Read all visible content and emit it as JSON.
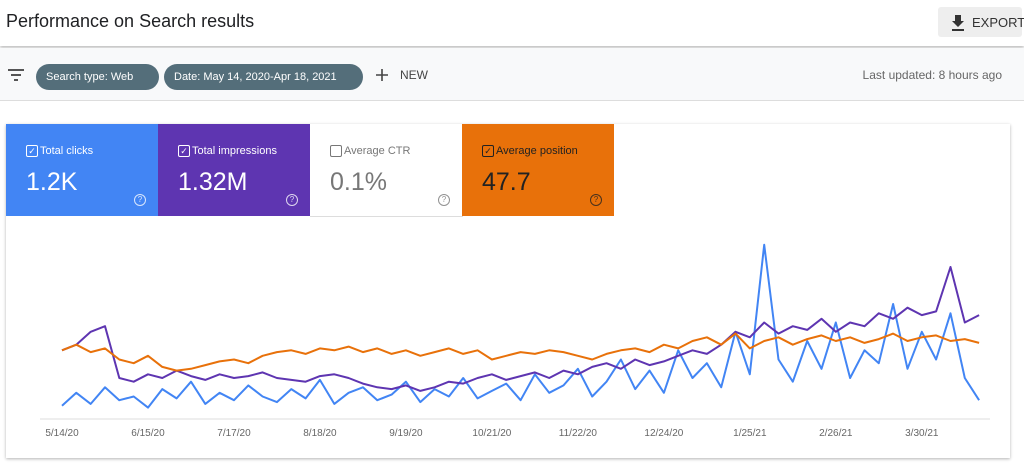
{
  "header": {
    "title": "Performance on Search results",
    "export": "EXPORT"
  },
  "filters": {
    "chips": [
      "Search type: Web",
      "Date: May 14, 2020-Apr 18, 2021"
    ],
    "new": "NEW",
    "updated": "Last updated: 8 hours ago"
  },
  "ctr": {
    "name": "Average CTR",
    "total": "0.1%",
    "checked": false
  },
  "chart_data": {
    "type": "line",
    "ylim": [
      0,
      100
    ],
    "categories": [
      "5/14/20",
      null,
      null,
      null,
      null,
      null,
      "6/15/20",
      null,
      null,
      null,
      null,
      null,
      "7/17/20",
      null,
      null,
      null,
      null,
      null,
      "8/18/20",
      null,
      null,
      null,
      null,
      null,
      "9/19/20",
      null,
      null,
      null,
      null,
      null,
      "10/21/20",
      null,
      null,
      null,
      null,
      null,
      "11/22/20",
      null,
      null,
      null,
      null,
      null,
      "12/24/20",
      null,
      null,
      null,
      null,
      null,
      "1/25/21",
      null,
      null,
      null,
      null,
      null,
      "2/26/21",
      null,
      null,
      null,
      null,
      null,
      "3/30/21",
      null,
      null,
      null,
      null
    ],
    "series": [
      {
        "name": "Total clicks",
        "total": "1.2K",
        "color": "#4285f4",
        "checked": true,
        "values": [
          5,
          12,
          6,
          15,
          8,
          10,
          4,
          14,
          9,
          18,
          6,
          12,
          8,
          16,
          10,
          7,
          14,
          9,
          19,
          6,
          12,
          15,
          8,
          11,
          18,
          7,
          14,
          10,
          20,
          9,
          13,
          17,
          8,
          22,
          12,
          16,
          25,
          10,
          18,
          30,
          14,
          24,
          12,
          35,
          20,
          28,
          15,
          45,
          22,
          92,
          30,
          18,
          40,
          25,
          50,
          20,
          35,
          28,
          60,
          25,
          45,
          30,
          55,
          20,
          8
        ]
      },
      {
        "name": "Total impressions",
        "total": "1.32M",
        "color": "#5e35b1",
        "checked": true,
        "values": [
          35,
          38,
          45,
          48,
          20,
          18,
          22,
          20,
          24,
          21,
          19,
          22,
          20,
          21,
          23,
          20,
          19,
          18,
          21,
          22,
          20,
          17,
          15,
          14,
          16,
          13,
          15,
          18,
          17,
          20,
          22,
          19,
          21,
          23,
          20,
          24,
          22,
          26,
          28,
          25,
          30,
          27,
          29,
          32,
          35,
          33,
          38,
          45,
          42,
          50,
          44,
          48,
          46,
          52,
          45,
          50,
          48,
          55,
          52,
          58,
          54,
          56,
          80,
          50,
          54
        ]
      },
      {
        "name": "Average position",
        "total": "47.7",
        "color": "#e8710a",
        "checked": true,
        "values": [
          35,
          38,
          34,
          36,
          30,
          28,
          32,
          26,
          24,
          25,
          27,
          29,
          30,
          28,
          32,
          34,
          35,
          33,
          36,
          35,
          37,
          34,
          36,
          33,
          35,
          32,
          34,
          36,
          33,
          35,
          30,
          32,
          34,
          33,
          35,
          34,
          32,
          30,
          33,
          35,
          36,
          34,
          38,
          36,
          40,
          42,
          38,
          44,
          36,
          40,
          42,
          38,
          41,
          43,
          40,
          42,
          39,
          41,
          44,
          40,
          42,
          43,
          40,
          41,
          39
        ]
      }
    ]
  }
}
